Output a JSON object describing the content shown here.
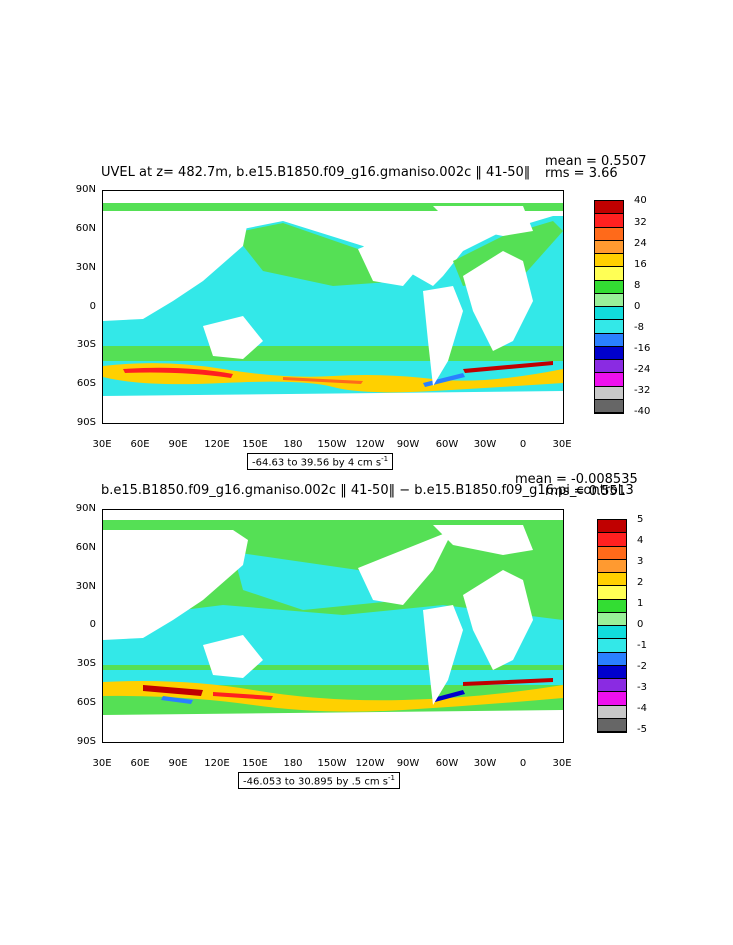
{
  "panels": [
    {
      "title": "UVEL at z= 482.7m, b.e15.B1850.f09_g16.gmaniso.002c ‖ 41-50‖",
      "mean_text": "mean = 0.5507",
      "rms_text": "rms = 3.66",
      "range_text": "-64.63 to 39.56 by 4 cm s",
      "range_unit_sup": "-1",
      "colorbar_labels": [
        "40",
        "32",
        "24",
        "16",
        "8",
        "0",
        "-8",
        "-16",
        "-24",
        "-32",
        "-40"
      ]
    },
    {
      "title": "b.e15.B1850.f09_g16.gmaniso.002c ‖ 41-50‖  −  b.e15.B1850.f09_g16.pi_control.3",
      "mean_text": "mean = -0.008535",
      "rms_text": "rms = 0.551",
      "range_text": "-46.053 to 30.895 by .5 cm s",
      "range_unit_sup": "-1",
      "colorbar_labels": [
        "5",
        "4",
        "3",
        "2",
        "1",
        "0",
        "-1",
        "-2",
        "-3",
        "-4",
        "-5"
      ]
    }
  ],
  "lat_labels": [
    "90N",
    "60N",
    "30N",
    "0",
    "30S",
    "60S",
    "90S"
  ],
  "lon_labels": [
    "30E",
    "60E",
    "90E",
    "120E",
    "150E",
    "180",
    "150W",
    "120W",
    "90W",
    "60W",
    "30W",
    "0",
    "30E"
  ],
  "colorbar_colors": [
    "#c00000",
    "#ff2020",
    "#ff6a1a",
    "#ff9a30",
    "#ffd000",
    "#ffff55",
    "#33dd33",
    "#99f099",
    "#11dddd",
    "#33e8e8",
    "#2a80ff",
    "#0000cc",
    "#8a2be2",
    "#ee10ee",
    "#c8c8c8",
    "#666666"
  ],
  "colors": {
    "zero_band": "#33e8e8",
    "pos_band": "#55e055",
    "land": "#ffffff"
  }
}
